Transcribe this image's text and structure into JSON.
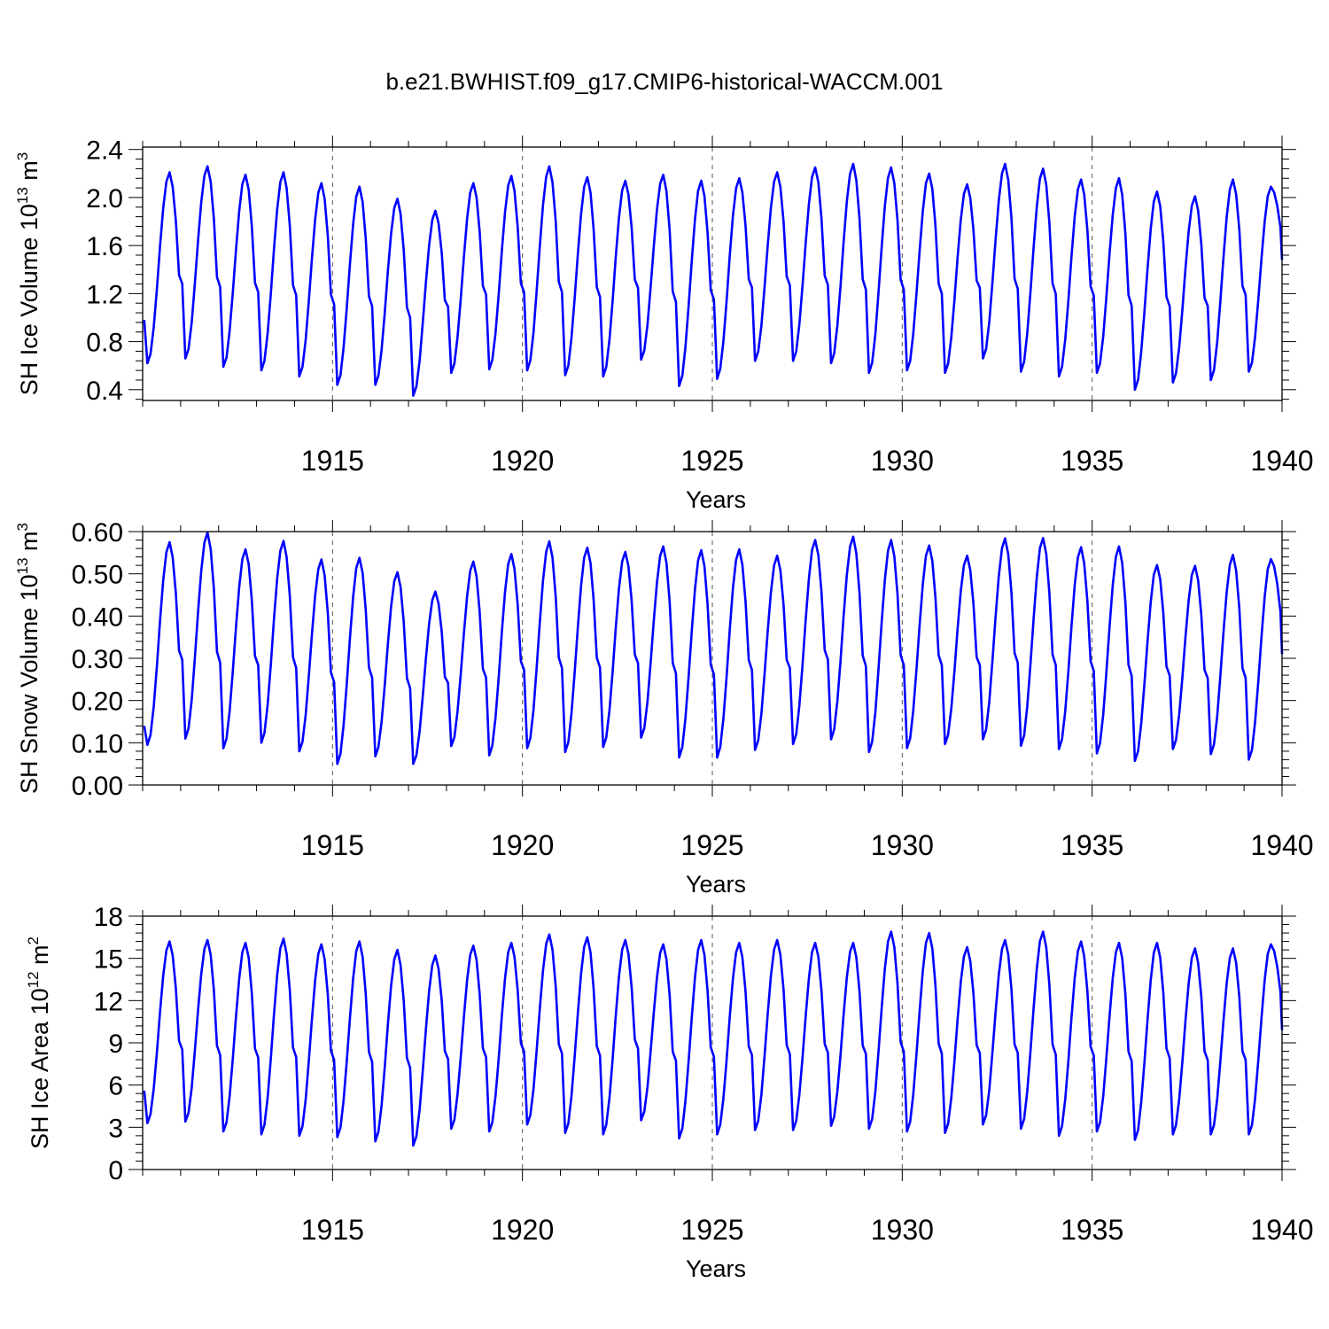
{
  "title": "b.e21.BWHIST.f09_g17.CMIP6-historical-WACCM.001",
  "colors": {
    "series": "#0000ff",
    "axis": "#000000",
    "grid": "#555555"
  },
  "chart_data": [
    {
      "type": "line",
      "id": "ice-volume",
      "ylabel": "SH Ice Volume",
      "ylabel_units": {
        "base": "10",
        "exp": "13",
        "unit": "m",
        "unit_exp": "3"
      },
      "xlabel": "Years",
      "xlim": [
        1910.0,
        1940.0
      ],
      "ylim": [
        0.31,
        2.42
      ],
      "yticks": [
        0.4,
        0.8,
        1.2,
        1.6,
        2.0,
        2.4
      ],
      "ytick_labels": [
        "0.4",
        "0.8",
        "1.2",
        "1.6",
        "2.0",
        "2.4"
      ],
      "xticks": [
        1915,
        1920,
        1925,
        1930,
        1935,
        1940
      ],
      "xtick_labels": [
        "1915",
        "1920",
        "1925",
        "1930",
        "1935",
        "1940"
      ],
      "start_value": 0.98,
      "end_value": 1.48,
      "annual_max": [
        2.21,
        2.26,
        2.19,
        2.21,
        2.12,
        2.09,
        1.99,
        1.89,
        2.12,
        2.18,
        2.26,
        2.17,
        2.14,
        2.19,
        2.14,
        2.16,
        2.21,
        2.25,
        2.28,
        2.25,
        2.2,
        2.11,
        2.28,
        2.24,
        2.15,
        2.16,
        2.05,
        2.01,
        2.15,
        2.09
      ],
      "annual_min": [
        0.62,
        0.66,
        0.59,
        0.56,
        0.51,
        0.44,
        0.44,
        0.35,
        0.54,
        0.57,
        0.56,
        0.52,
        0.51,
        0.65,
        0.43,
        0.49,
        0.64,
        0.64,
        0.62,
        0.54,
        0.56,
        0.54,
        0.66,
        0.55,
        0.51,
        0.54,
        0.4,
        0.46,
        0.48,
        0.55
      ]
    },
    {
      "type": "line",
      "id": "snow-volume",
      "ylabel": "SH Snow Volume",
      "ylabel_units": {
        "base": "10",
        "exp": "13",
        "unit": "m",
        "unit_exp": "3"
      },
      "xlabel": "Years",
      "xlim": [
        1910.0,
        1940.0
      ],
      "ylim": [
        0.0,
        0.6
      ],
      "yticks": [
        0.0,
        0.1,
        0.2,
        0.3,
        0.4,
        0.5,
        0.6
      ],
      "ytick_labels": [
        "0.00",
        "0.10",
        "0.20",
        "0.30",
        "0.40",
        "0.50",
        "0.60"
      ],
      "xticks": [
        1915,
        1920,
        1925,
        1930,
        1935,
        1940
      ],
      "xtick_labels": [
        "1915",
        "1920",
        "1925",
        "1930",
        "1935",
        "1940"
      ],
      "start_value": 0.14,
      "end_value": 0.31,
      "annual_max": [
        0.575,
        0.598,
        0.558,
        0.578,
        0.534,
        0.538,
        0.504,
        0.458,
        0.529,
        0.547,
        0.577,
        0.562,
        0.552,
        0.565,
        0.556,
        0.558,
        0.543,
        0.58,
        0.588,
        0.58,
        0.567,
        0.543,
        0.584,
        0.585,
        0.563,
        0.565,
        0.521,
        0.519,
        0.545,
        0.535
      ],
      "annual_min": [
        0.095,
        0.11,
        0.087,
        0.1,
        0.08,
        0.05,
        0.068,
        0.05,
        0.092,
        0.07,
        0.087,
        0.078,
        0.09,
        0.112,
        0.065,
        0.065,
        0.083,
        0.097,
        0.108,
        0.078,
        0.087,
        0.097,
        0.108,
        0.093,
        0.085,
        0.075,
        0.057,
        0.085,
        0.073,
        0.06
      ]
    },
    {
      "type": "line",
      "id": "ice-area",
      "ylabel": "SH Ice Area",
      "ylabel_units": {
        "base": "10",
        "exp": "12",
        "unit": "m",
        "unit_exp": "2"
      },
      "xlabel": "Years",
      "xlim": [
        1910.0,
        1940.0
      ],
      "ylim": [
        0,
        18
      ],
      "yticks": [
        0,
        3,
        6,
        9,
        12,
        15,
        18
      ],
      "ytick_labels": [
        "0",
        "3",
        "6",
        "9",
        "12",
        "15",
        "18"
      ],
      "xticks": [
        1915,
        1920,
        1925,
        1930,
        1935,
        1940
      ],
      "xtick_labels": [
        "1915",
        "1920",
        "1925",
        "1930",
        "1935",
        "1940"
      ],
      "start_value": 5.6,
      "end_value": 9.9,
      "annual_max": [
        16.2,
        16.3,
        16.1,
        16.4,
        16.0,
        16.2,
        15.6,
        15.2,
        15.9,
        16.1,
        16.7,
        16.5,
        16.3,
        16.0,
        16.3,
        16.1,
        16.3,
        16.1,
        16.1,
        16.9,
        16.8,
        15.8,
        16.3,
        16.9,
        16.2,
        16.1,
        16.1,
        15.7,
        15.7,
        16.0
      ],
      "annual_min": [
        3.3,
        3.4,
        2.7,
        2.5,
        2.4,
        2.3,
        2.0,
        1.7,
        2.9,
        2.7,
        3.2,
        2.6,
        2.5,
        3.5,
        2.2,
        2.5,
        2.8,
        2.8,
        3.1,
        2.9,
        2.7,
        2.6,
        3.2,
        2.9,
        2.4,
        2.7,
        2.1,
        2.5,
        2.5,
        2.5
      ]
    }
  ]
}
